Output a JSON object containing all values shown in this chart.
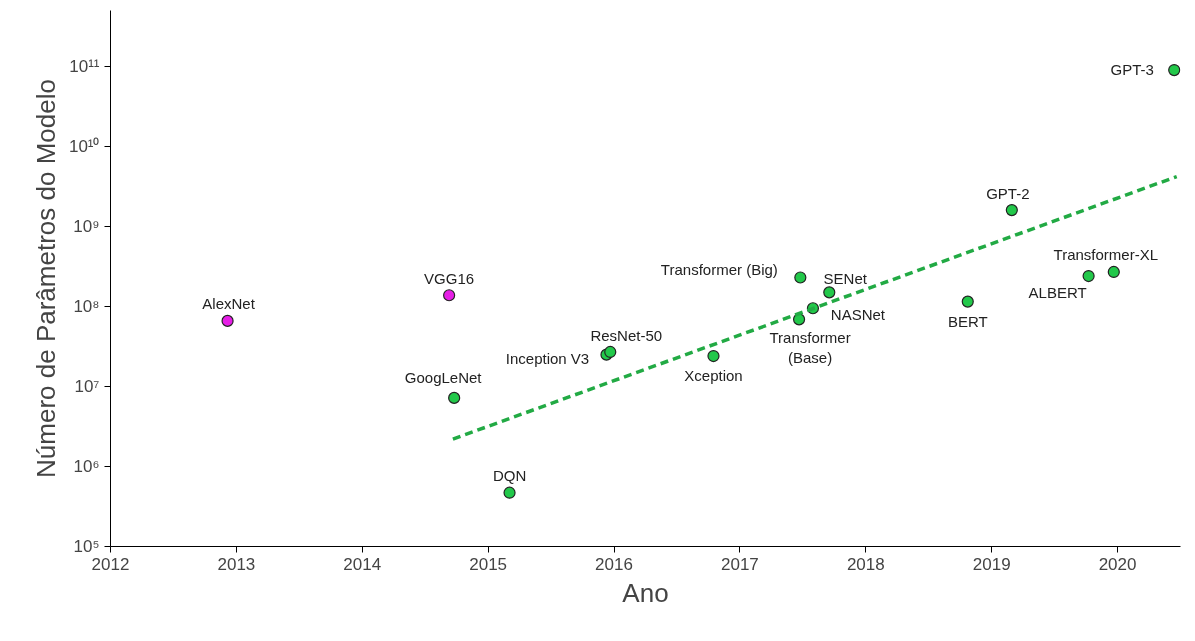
{
  "chart_data": {
    "type": "scatter",
    "xlabel": "Ano",
    "ylabel": "Número de Parâmetros do Modelo",
    "log": "y",
    "grid": false,
    "marker": "circle",
    "xlim": [
      2012,
      2020.5
    ],
    "xticks": [
      2012,
      2013,
      2014,
      2015,
      2016,
      2017,
      2018,
      2019,
      2020
    ],
    "ylim": [
      100000,
      500000000000
    ],
    "yticks": [
      {
        "value": 100000,
        "label": "10⁵"
      },
      {
        "value": 1000000,
        "label": "10⁶"
      },
      {
        "value": 10000000,
        "label": "10⁷"
      },
      {
        "value": 100000000,
        "label": "10⁸"
      },
      {
        "value": 1000000000,
        "label": "10⁹"
      },
      {
        "value": 10000000000,
        "label": "10¹⁰"
      },
      {
        "value": 100000000000,
        "label": "10¹¹"
      }
    ],
    "series": [
      {
        "color": "#e61ee6",
        "x": [
          2012.93,
          2014.69
        ],
        "values": [
          66000000,
          138000000
        ]
      },
      {
        "color": "#22c84a",
        "x": [
          2014.73,
          2015.17,
          2015.94,
          2015.97,
          2016.79,
          2017.48,
          2017.47,
          2017.58,
          2017.71,
          2018.81,
          2019.16,
          2019.77,
          2019.97,
          2020.45
        ],
        "values": [
          7200000,
          470000,
          25000000,
          27000000,
          24000000,
          230000000,
          69000000,
          95000000,
          150000000,
          115000000,
          1600000000,
          240000000,
          270000000,
          90000000000
        ]
      },
      {
        "type": "line",
        "color": "#22aa44",
        "line_style": "dashed",
        "marker": "none",
        "x": [
          2014.72,
          2020.47
        ],
        "values": [
          2200000,
          4200000000
        ]
      }
    ],
    "annotations": [
      {
        "text": "AlexNet",
        "x": 2012.93,
        "y": 66000000
      },
      {
        "text": "VGG16",
        "x": 2014.69,
        "y": 138000000
      },
      {
        "text": "GoogLeNet",
        "x": 2014.73,
        "y": 7200000
      },
      {
        "text": "DQN",
        "x": 2015.17,
        "y": 470000
      },
      {
        "text": "Inception V3",
        "x": 2015.94,
        "y": 25000000
      },
      {
        "text": "ResNet-50",
        "x": 2015.97,
        "y": 27000000
      },
      {
        "text": "Xception",
        "x": 2016.79,
        "y": 24000000
      },
      {
        "text": "Transformer (Big)",
        "x": 2017.48,
        "y": 230000000
      },
      {
        "text": "Transformer\n(Base)",
        "x": 2017.47,
        "y": 69000000
      },
      {
        "text": "NASNet",
        "x": 2017.58,
        "y": 95000000
      },
      {
        "text": "SENet",
        "x": 2017.71,
        "y": 150000000
      },
      {
        "text": "BERT",
        "x": 2018.81,
        "y": 115000000
      },
      {
        "text": "GPT-2",
        "x": 2019.16,
        "y": 1600000000
      },
      {
        "text": "ALBERT",
        "x": 2019.77,
        "y": 240000000
      },
      {
        "text": "Transformer-XL",
        "x": 2019.97,
        "y": 270000000
      },
      {
        "text": "GPT-3",
        "x": 2020.45,
        "y": 90000000000
      }
    ]
  }
}
